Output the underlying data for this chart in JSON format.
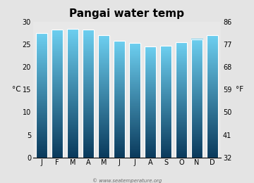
{
  "title": "Pangai water temp",
  "months": [
    "J",
    "F",
    "M",
    "A",
    "M",
    "J",
    "J",
    "A",
    "S",
    "O",
    "N",
    "D"
  ],
  "values_c": [
    27.5,
    28.3,
    28.5,
    28.3,
    27.0,
    25.8,
    25.3,
    24.6,
    24.7,
    25.5,
    26.2,
    27.0
  ],
  "ylim_c": [
    0,
    30
  ],
  "yticks_c": [
    0,
    5,
    10,
    15,
    20,
    25,
    30
  ],
  "yticks_f": [
    32,
    41,
    50,
    59,
    68,
    77,
    86
  ],
  "ylabel_left": "°C",
  "ylabel_right": "°F",
  "bar_color_top": "#6DCFF0",
  "bar_color_bottom": "#0A3A5C",
  "background_color": "#E4E4E4",
  "plot_bg_color": "#E8E8E8",
  "watermark": "© www.seatemperature.org",
  "title_fontsize": 11,
  "tick_fontsize": 7,
  "label_fontsize": 7.5,
  "bar_width": 0.75,
  "bar_edge_color": "white",
  "bar_edge_lw": 0.8
}
